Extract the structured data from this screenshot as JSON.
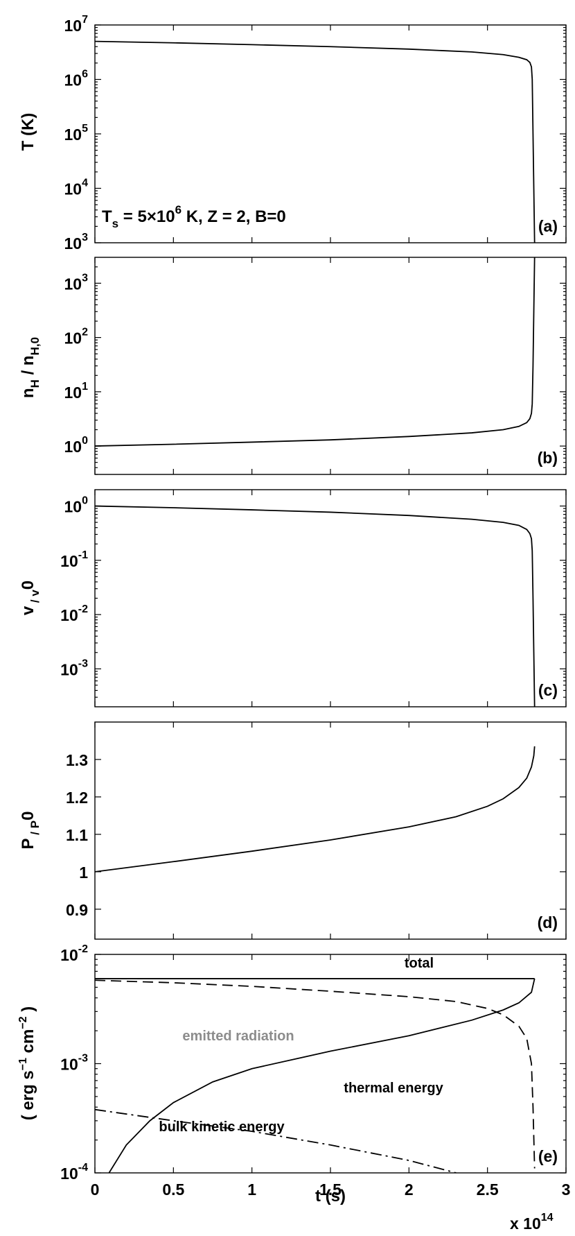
{
  "figure": {
    "x_axis": {
      "label": "t (s)",
      "ticks": [
        "0",
        "0.5",
        "1",
        "1.5",
        "2",
        "2.5",
        "3"
      ],
      "multiplier_base": "x 10",
      "multiplier_exp": "14",
      "range": [
        0,
        300000000000000.0
      ]
    }
  },
  "chart_data": [
    {
      "id": "a",
      "type": "line",
      "panel_label": "(a)",
      "ylabel": "T (K)",
      "yscale": "log",
      "ylim": [
        1000,
        10000000
      ],
      "yticks": [
        {
          "base": "10",
          "exp": "3"
        },
        {
          "base": "10",
          "exp": "4"
        },
        {
          "base": "10",
          "exp": "5"
        },
        {
          "base": "10",
          "exp": "6"
        },
        {
          "base": "10",
          "exp": "7"
        }
      ],
      "annotation": {
        "parts": [
          "T",
          "s",
          " = 5×10",
          "6",
          " K,  Z = 2,  B=0"
        ]
      },
      "series": [
        {
          "style": "solid",
          "color": "#000000",
          "x": [
            0,
            50000000000000.0,
            100000000000000.0,
            150000000000000.0,
            200000000000000.0,
            240000000000000.0,
            260000000000000.0,
            270000000000000.0,
            275000000000000.0,
            277000000000000.0,
            278000000000000.0,
            278500000000000.0,
            279000000000000.0,
            279500000000000.0,
            280000000000000.0
          ],
          "y": [
            5000000.0,
            4700000.0,
            4350000.0,
            4000000.0,
            3600000.0,
            3200000.0,
            2850000.0,
            2550000.0,
            2300000.0,
            2050000.0,
            1700000.0,
            1000000.0,
            100000.0,
            10000.0,
            1000.0
          ]
        }
      ]
    },
    {
      "id": "b",
      "type": "line",
      "panel_label": "(b)",
      "ylabel_parts": [
        "n",
        "H",
        " / n",
        "H,0"
      ],
      "yscale": "log",
      "ylim": [
        0.3,
        3000
      ],
      "yticks": [
        {
          "base": "10",
          "exp": "0"
        },
        {
          "base": "10",
          "exp": "1"
        },
        {
          "base": "10",
          "exp": "2"
        },
        {
          "base": "10",
          "exp": "3"
        }
      ],
      "series": [
        {
          "style": "solid",
          "color": "#000000",
          "x": [
            0,
            50000000000000.0,
            100000000000000.0,
            150000000000000.0,
            200000000000000.0,
            240000000000000.0,
            260000000000000.0,
            270000000000000.0,
            275000000000000.0,
            277000000000000.0,
            278000000000000.0,
            278500000000000.0,
            279000000000000.0,
            279500000000000.0,
            280000000000000.0
          ],
          "y": [
            1.0,
            1.08,
            1.18,
            1.3,
            1.5,
            1.75,
            2.0,
            2.3,
            2.7,
            3.2,
            4.0,
            6.0,
            30,
            300,
            3000
          ]
        }
      ]
    },
    {
      "id": "c",
      "type": "line",
      "panel_label": "(c)",
      "ylabel_parts": [
        "v",
        " / v",
        "0"
      ],
      "yscale": "log",
      "ylim": [
        0.0002,
        2
      ],
      "yticks": [
        {
          "base": "10",
          "exp": "-3"
        },
        {
          "base": "10",
          "exp": "-2"
        },
        {
          "base": "10",
          "exp": "-1"
        },
        {
          "base": "10",
          "exp": "0"
        }
      ],
      "series": [
        {
          "style": "solid",
          "color": "#000000",
          "x": [
            0,
            50000000000000.0,
            100000000000000.0,
            150000000000000.0,
            200000000000000.0,
            240000000000000.0,
            260000000000000.0,
            270000000000000.0,
            275000000000000.0,
            277000000000000.0,
            278000000000000.0,
            278500000000000.0,
            279000000000000.0,
            279500000000000.0,
            280000000000000.0
          ],
          "y": [
            1.0,
            0.93,
            0.85,
            0.77,
            0.67,
            0.57,
            0.5,
            0.44,
            0.37,
            0.31,
            0.25,
            0.15,
            0.02,
            0.002,
            0.0002
          ]
        }
      ]
    },
    {
      "id": "d",
      "type": "line",
      "panel_label": "(d)",
      "ylabel_parts": [
        "P",
        " / P",
        "0"
      ],
      "yscale": "linear",
      "ylim": [
        0.82,
        1.4
      ],
      "yticks": [
        {
          "base": "0.9"
        },
        {
          "base": "1"
        },
        {
          "base": "1.1"
        },
        {
          "base": "1.2"
        },
        {
          "base": "1.3"
        }
      ],
      "series": [
        {
          "style": "solid",
          "color": "#000000",
          "x": [
            0,
            50000000000000.0,
            100000000000000.0,
            150000000000000.0,
            200000000000000.0,
            230000000000000.0,
            250000000000000.0,
            260000000000000.0,
            270000000000000.0,
            275000000000000.0,
            278000000000000.0,
            279500000000000.0,
            280000000000000.0
          ],
          "y": [
            1.0,
            1.027,
            1.055,
            1.085,
            1.12,
            1.147,
            1.175,
            1.195,
            1.225,
            1.25,
            1.28,
            1.31,
            1.335
          ]
        }
      ]
    },
    {
      "id": "e",
      "type": "line",
      "panel_label": "(e)",
      "ylabel_parts": [
        "( erg s",
        "−1",
        " cm",
        "−2",
        " )"
      ],
      "yscale": "log",
      "ylim": [
        0.0001,
        0.01
      ],
      "yticks": [
        {
          "base": "10",
          "exp": "-4"
        },
        {
          "base": "10",
          "exp": "-3"
        },
        {
          "base": "10",
          "exp": "-2"
        }
      ],
      "series": [
        {
          "name": "total",
          "style": "solid",
          "color": "#000000",
          "x": [
            0,
            280000000000000.0
          ],
          "y": [
            0.006,
            0.006
          ]
        },
        {
          "name": "thermal energy",
          "style": "dashed",
          "color": "#000000",
          "x": [
            0,
            50000000000000.0,
            100000000000000.0,
            150000000000000.0,
            200000000000000.0,
            230000000000000.0,
            250000000000000.0,
            260000000000000.0,
            270000000000000.0,
            275000000000000.0,
            278000000000000.0,
            279000000000000.0,
            280000000000000.0
          ],
          "y": [
            0.0058,
            0.0055,
            0.0051,
            0.0046,
            0.0041,
            0.0037,
            0.0032,
            0.0028,
            0.0022,
            0.0017,
            0.001,
            0.0004,
            0.00011
          ]
        },
        {
          "name": "emitted radiation",
          "style": "solid",
          "color": "#8c8c8c",
          "x": [
            9000000000000.0,
            20000000000000.0,
            35000000000000.0,
            50000000000000.0,
            75000000000000.0,
            100000000000000.0,
            150000000000000.0,
            200000000000000.0,
            240000000000000.0,
            260000000000000.0,
            270000000000000.0,
            278000000000000.0,
            280000000000000.0
          ],
          "y": [
            0.0001,
            0.00018,
            0.0003,
            0.00044,
            0.00068,
            0.0009,
            0.0013,
            0.0018,
            0.0025,
            0.0031,
            0.0036,
            0.0045,
            0.006
          ]
        },
        {
          "name": "bulk kinetic energy",
          "style": "dashdot",
          "color": "#000000",
          "x": [
            0,
            50000000000000.0,
            100000000000000.0,
            150000000000000.0,
            200000000000000.0,
            230000000000000.0
          ],
          "y": [
            0.00038,
            0.0003,
            0.00024,
            0.00018,
            0.00013,
            0.0001
          ]
        }
      ]
    }
  ]
}
